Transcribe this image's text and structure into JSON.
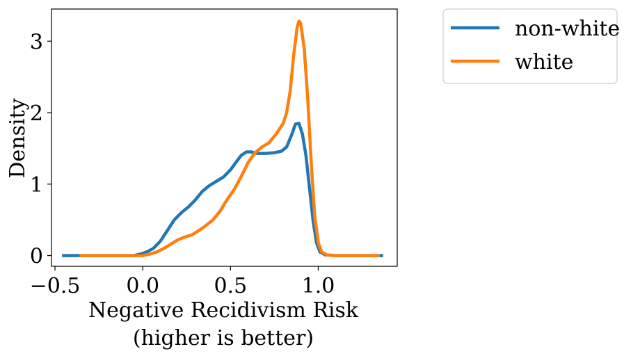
{
  "chart_data": {
    "type": "line",
    "title": "",
    "xlabel_line1": "Negative Recidivism Risk",
    "xlabel_line2": "(higher is better)",
    "ylabel": "Density",
    "xlim": [
      -0.52,
      1.45
    ],
    "ylim": [
      -0.15,
      3.45
    ],
    "xticks": [
      {
        "value": -0.5,
        "label": "−0.5"
      },
      {
        "value": 0.0,
        "label": "0.0"
      },
      {
        "value": 0.5,
        "label": "0.5"
      },
      {
        "value": 1.0,
        "label": "1.0"
      }
    ],
    "yticks": [
      {
        "value": 0,
        "label": "0"
      },
      {
        "value": 1,
        "label": "1"
      },
      {
        "value": 2,
        "label": "2"
      },
      {
        "value": 3,
        "label": "3"
      }
    ],
    "grid": false,
    "legend_placement": "outside-top-right",
    "series": [
      {
        "name": "non-white",
        "color": "#1f77b4",
        "points": [
          [
            -0.46,
            0.0
          ],
          [
            -0.2,
            0.0
          ],
          [
            -0.05,
            0.0
          ],
          [
            0.0,
            0.03
          ],
          [
            0.03,
            0.06
          ],
          [
            0.06,
            0.1
          ],
          [
            0.1,
            0.2
          ],
          [
            0.14,
            0.35
          ],
          [
            0.18,
            0.5
          ],
          [
            0.22,
            0.6
          ],
          [
            0.26,
            0.68
          ],
          [
            0.3,
            0.78
          ],
          [
            0.34,
            0.9
          ],
          [
            0.38,
            0.98
          ],
          [
            0.42,
            1.04
          ],
          [
            0.46,
            1.1
          ],
          [
            0.5,
            1.2
          ],
          [
            0.53,
            1.3
          ],
          [
            0.56,
            1.4
          ],
          [
            0.59,
            1.45
          ],
          [
            0.62,
            1.45
          ],
          [
            0.65,
            1.43
          ],
          [
            0.7,
            1.43
          ],
          [
            0.75,
            1.44
          ],
          [
            0.79,
            1.46
          ],
          [
            0.82,
            1.52
          ],
          [
            0.85,
            1.7
          ],
          [
            0.87,
            1.84
          ],
          [
            0.89,
            1.85
          ],
          [
            0.91,
            1.7
          ],
          [
            0.93,
            1.4
          ],
          [
            0.95,
            0.95
          ],
          [
            0.97,
            0.5
          ],
          [
            0.99,
            0.18
          ],
          [
            1.01,
            0.05
          ],
          [
            1.04,
            0.01
          ],
          [
            1.1,
            0.0
          ],
          [
            1.3,
            0.0
          ],
          [
            1.37,
            0.0
          ]
        ]
      },
      {
        "name": "white",
        "color": "#ff7f0e",
        "points": [
          [
            -0.36,
            0.0
          ],
          [
            -0.1,
            0.0
          ],
          [
            0.0,
            0.0
          ],
          [
            0.04,
            0.02
          ],
          [
            0.08,
            0.05
          ],
          [
            0.12,
            0.1
          ],
          [
            0.16,
            0.16
          ],
          [
            0.2,
            0.22
          ],
          [
            0.24,
            0.26
          ],
          [
            0.28,
            0.29
          ],
          [
            0.32,
            0.35
          ],
          [
            0.36,
            0.42
          ],
          [
            0.4,
            0.5
          ],
          [
            0.44,
            0.62
          ],
          [
            0.48,
            0.78
          ],
          [
            0.52,
            0.92
          ],
          [
            0.56,
            1.1
          ],
          [
            0.6,
            1.3
          ],
          [
            0.64,
            1.44
          ],
          [
            0.68,
            1.52
          ],
          [
            0.72,
            1.58
          ],
          [
            0.76,
            1.7
          ],
          [
            0.8,
            1.85
          ],
          [
            0.82,
            2.0
          ],
          [
            0.84,
            2.3
          ],
          [
            0.86,
            2.8
          ],
          [
            0.88,
            3.2
          ],
          [
            0.89,
            3.28
          ],
          [
            0.9,
            3.25
          ],
          [
            0.92,
            2.9
          ],
          [
            0.94,
            2.2
          ],
          [
            0.96,
            1.3
          ],
          [
            0.98,
            0.55
          ],
          [
            1.0,
            0.18
          ],
          [
            1.02,
            0.05
          ],
          [
            1.05,
            0.01
          ],
          [
            1.1,
            0.0
          ],
          [
            1.3,
            0.0
          ],
          [
            1.35,
            0.0
          ]
        ]
      }
    ]
  }
}
